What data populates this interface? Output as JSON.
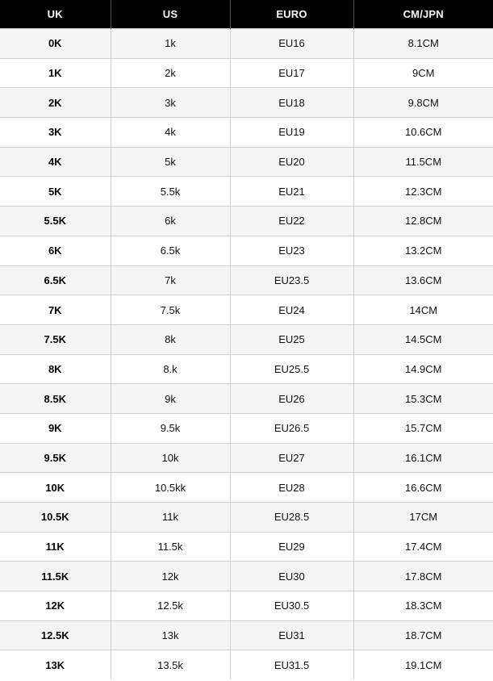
{
  "table": {
    "headers": {
      "uk": "UK",
      "us": "US",
      "euro": "EURO",
      "cm_jpn": "CM/JPN"
    },
    "rows": [
      {
        "uk": "0K",
        "us": "1k",
        "euro": "EU16",
        "cm": "8.1CM"
      },
      {
        "uk": "1K",
        "us": "2k",
        "euro": "EU17",
        "cm": "9CM"
      },
      {
        "uk": "2K",
        "us": "3k",
        "euro": "EU18",
        "cm": "9.8CM"
      },
      {
        "uk": "3K",
        "us": "4k",
        "euro": "EU19",
        "cm": "10.6CM"
      },
      {
        "uk": "4K",
        "us": "5k",
        "euro": "EU20",
        "cm": "11.5CM"
      },
      {
        "uk": "5K",
        "us": "5.5k",
        "euro": "EU21",
        "cm": "12.3CM"
      },
      {
        "uk": "5.5K",
        "us": "6k",
        "euro": "EU22",
        "cm": "12.8CM"
      },
      {
        "uk": "6K",
        "us": "6.5k",
        "euro": "EU23",
        "cm": "13.2CM"
      },
      {
        "uk": "6.5K",
        "us": "7k",
        "euro": "EU23.5",
        "cm": "13.6CM"
      },
      {
        "uk": "7K",
        "us": "7.5k",
        "euro": "EU24",
        "cm": "14CM"
      },
      {
        "uk": "7.5K",
        "us": "8k",
        "euro": "EU25",
        "cm": "14.5CM"
      },
      {
        "uk": "8K",
        "us": "8.k",
        "euro": "EU25.5",
        "cm": "14.9CM"
      },
      {
        "uk": "8.5K",
        "us": "9k",
        "euro": "EU26",
        "cm": "15.3CM"
      },
      {
        "uk": "9K",
        "us": "9.5k",
        "euro": "EU26.5",
        "cm": "15.7CM"
      },
      {
        "uk": "9.5K",
        "us": "10k",
        "euro": "EU27",
        "cm": "16.1CM"
      },
      {
        "uk": "10K",
        "us": "10.5kk",
        "euro": "EU28",
        "cm": "16.6CM"
      },
      {
        "uk": "10.5K",
        "us": "11k",
        "euro": "EU28.5",
        "cm": "17CM"
      },
      {
        "uk": "11K",
        "us": "11.5k",
        "euro": "EU29",
        "cm": "17.4CM"
      },
      {
        "uk": "11.5K",
        "us": "12k",
        "euro": "EU30",
        "cm": "17.8CM"
      },
      {
        "uk": "12K",
        "us": "12.5k",
        "euro": "EU30.5",
        "cm": "18.3CM"
      },
      {
        "uk": "12.5K",
        "us": "13k",
        "euro": "EU31",
        "cm": "18.7CM"
      },
      {
        "uk": "13K",
        "us": "13.5k",
        "euro": "EU31.5",
        "cm": "19.1CM"
      }
    ]
  }
}
